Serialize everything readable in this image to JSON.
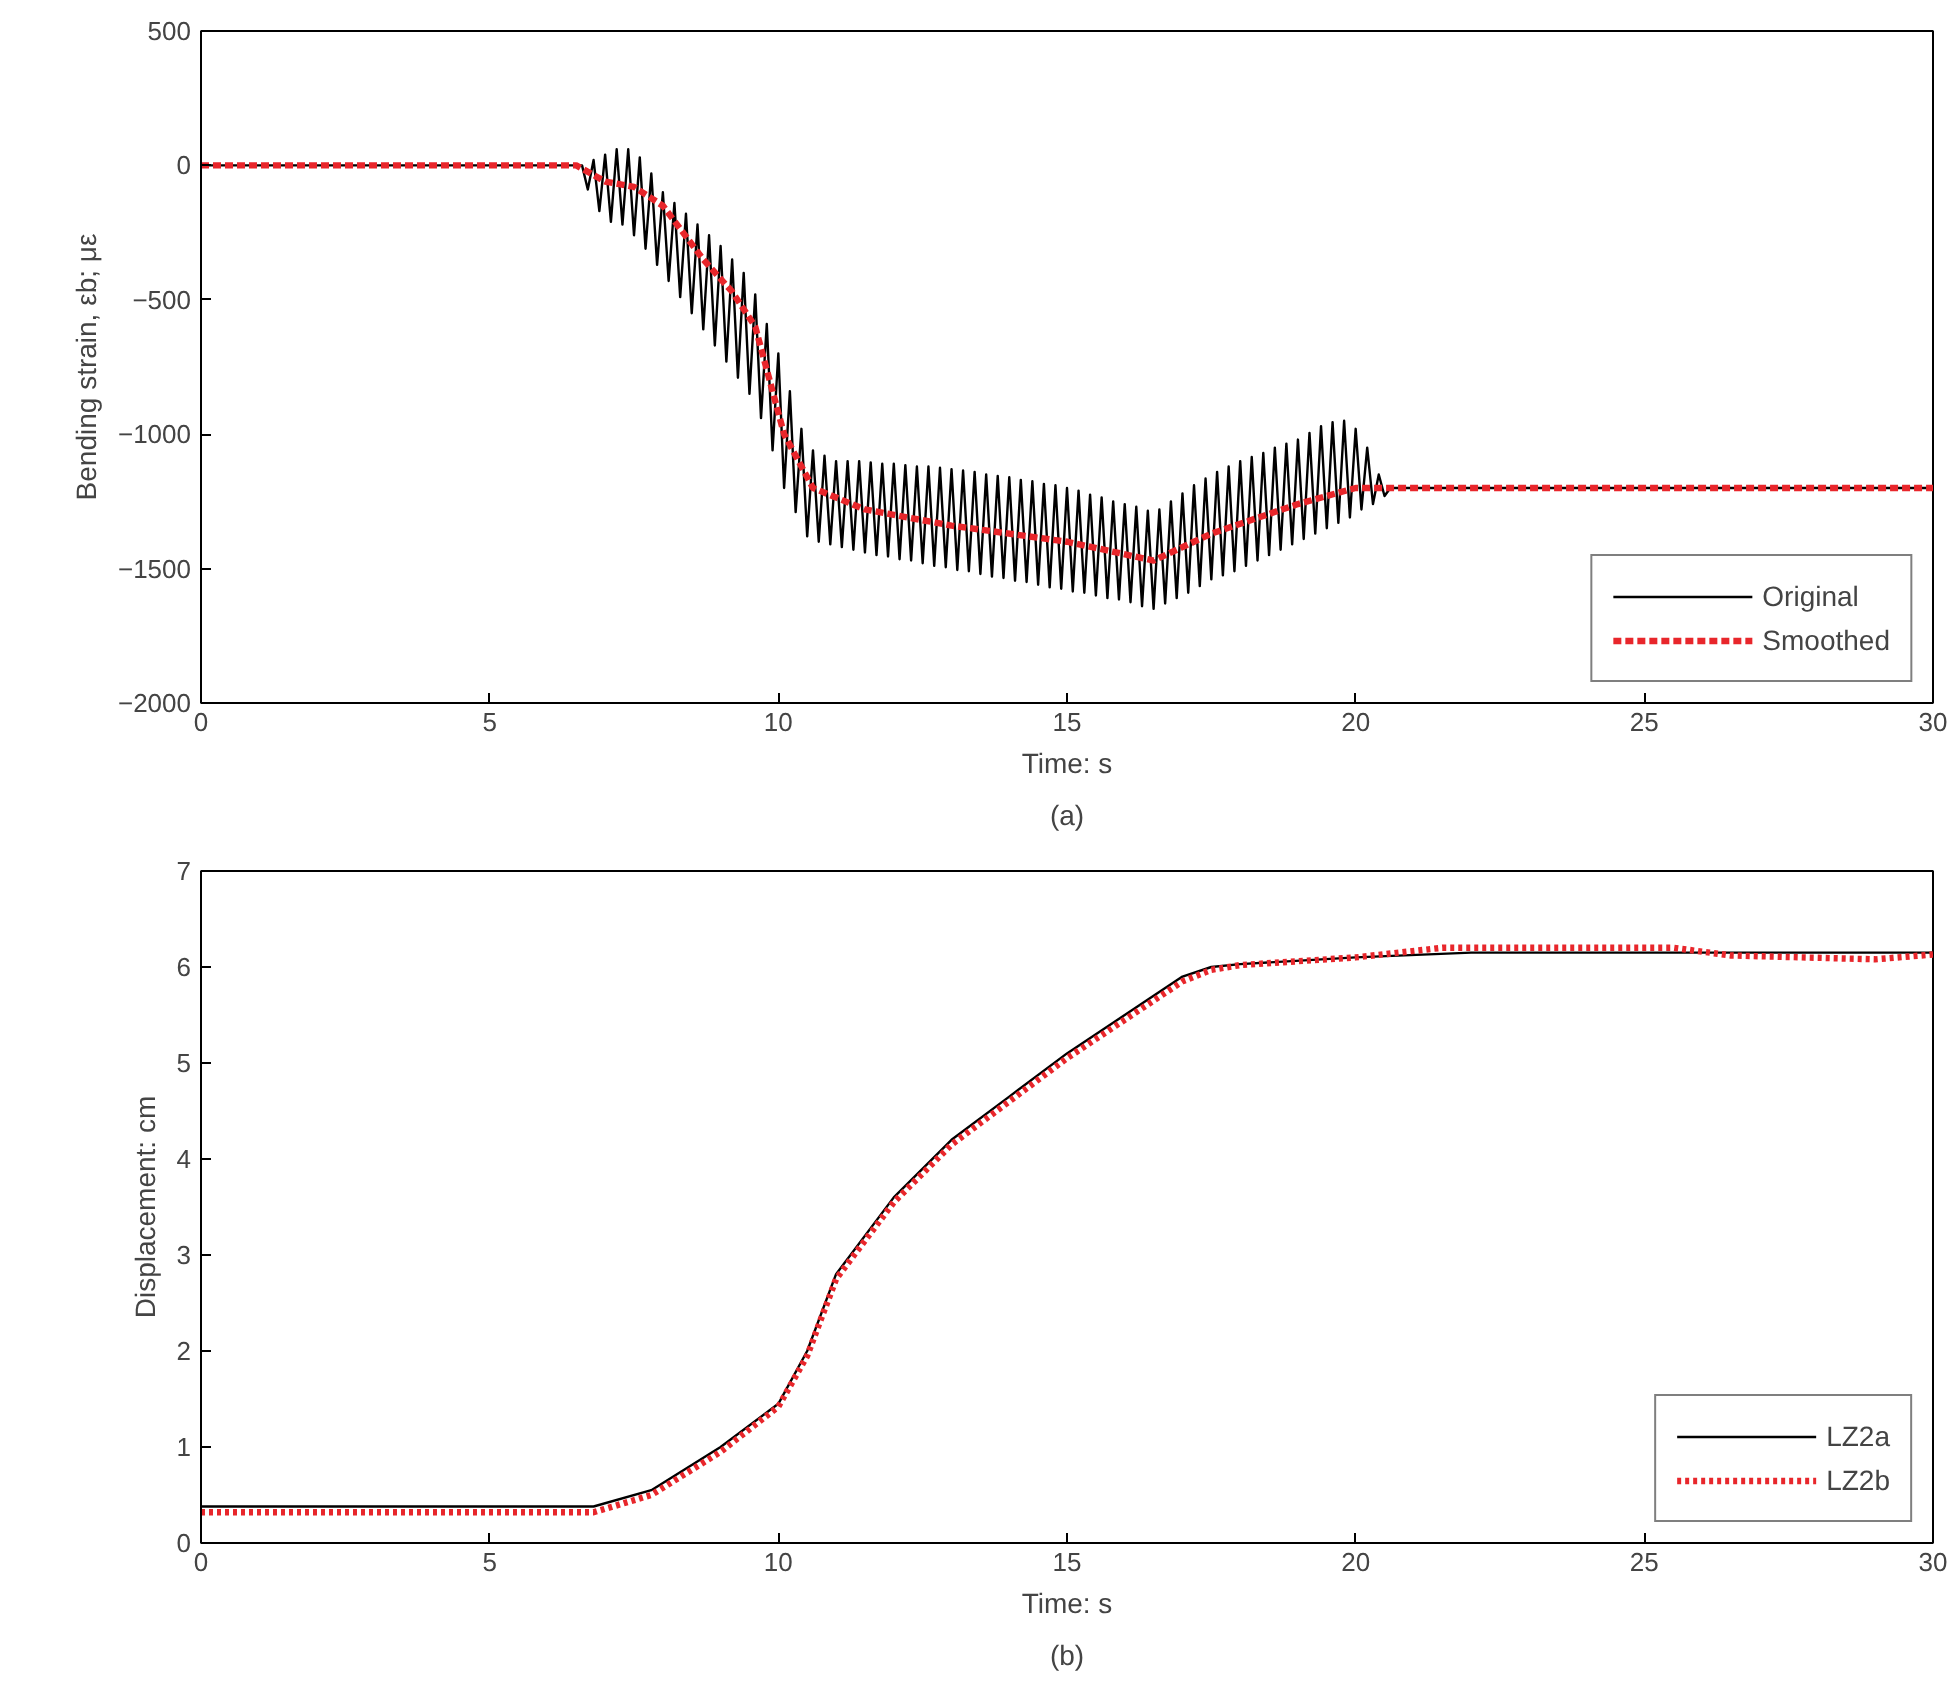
{
  "chart_data": [
    {
      "type": "line",
      "xlabel": "Time: s",
      "ylabel": "Bending strain, εb; με",
      "annotations": [
        "(a)"
      ],
      "xlim": [
        0,
        30
      ],
      "xticks": [
        0,
        5,
        10,
        15,
        20,
        25,
        30
      ],
      "ylim": [
        -2000,
        500
      ],
      "yticks": [
        500,
        0,
        {
          "value": -500,
          "label": "−500"
        },
        {
          "value": -1000,
          "label": "−1000"
        },
        {
          "value": -1500,
          "label": "−1500"
        },
        {
          "value": -2000,
          "label": "−2000"
        }
      ],
      "grid": false,
      "legend": "bottom right",
      "series": [
        {
          "name": "Original",
          "color": "#000000",
          "line_style": "solid",
          "x": [
            0,
            6.5,
            6.6,
            6.7,
            6.8,
            6.9,
            7.0,
            7.1,
            7.2,
            7.3,
            7.4,
            7.5,
            7.6,
            7.7,
            7.8,
            7.9,
            8.0,
            8.1,
            8.2,
            8.3,
            8.4,
            8.5,
            8.6,
            8.7,
            8.8,
            8.9,
            9.0,
            9.1,
            9.2,
            9.3,
            9.4,
            9.5,
            9.6,
            9.7,
            9.8,
            9.9,
            10.0,
            10.1,
            10.2,
            10.3,
            10.4,
            10.5,
            10.6,
            10.7,
            10.8,
            10.9,
            11.0,
            11.1,
            11.2,
            11.3,
            11.4,
            11.5,
            11.6,
            11.7,
            11.8,
            11.9,
            12.0,
            12.1,
            12.2,
            12.3,
            12.4,
            12.5,
            12.6,
            12.7,
            12.8,
            12.9,
            13.0,
            13.1,
            13.2,
            13.3,
            13.4,
            13.5,
            13.6,
            13.7,
            13.8,
            13.9,
            14.0,
            14.1,
            14.2,
            14.3,
            14.4,
            14.5,
            14.6,
            14.7,
            14.8,
            14.9,
            15.0,
            15.1,
            15.2,
            15.3,
            15.4,
            15.5,
            15.6,
            15.7,
            15.8,
            15.9,
            16.0,
            16.1,
            16.2,
            16.3,
            16.4,
            16.5,
            16.6,
            16.7,
            16.8,
            16.9,
            17.0,
            17.1,
            17.2,
            17.3,
            17.4,
            17.5,
            17.6,
            17.7,
            17.8,
            17.9,
            18.0,
            18.1,
            18.2,
            18.3,
            18.4,
            18.5,
            18.6,
            18.7,
            18.8,
            18.9,
            19.0,
            19.1,
            19.2,
            19.3,
            19.4,
            19.5,
            19.6,
            19.7,
            19.8,
            19.9,
            20.0,
            20.1,
            20.2,
            20.3,
            20.4,
            20.5,
            20.6,
            30
          ],
          "values": [
            0,
            0,
            0,
            -90,
            20,
            -170,
            40,
            -210,
            60,
            -220,
            60,
            -260,
            30,
            -310,
            -30,
            -370,
            -100,
            -430,
            -140,
            -490,
            -180,
            -550,
            -220,
            -610,
            -260,
            -670,
            -300,
            -730,
            -350,
            -790,
            -400,
            -850,
            -480,
            -940,
            -590,
            -1060,
            -700,
            -1200,
            -840,
            -1290,
            -980,
            -1380,
            -1060,
            -1400,
            -1080,
            -1410,
            -1100,
            -1420,
            -1100,
            -1430,
            -1100,
            -1440,
            -1105,
            -1450,
            -1110,
            -1455,
            -1110,
            -1465,
            -1115,
            -1470,
            -1120,
            -1480,
            -1120,
            -1490,
            -1125,
            -1495,
            -1130,
            -1505,
            -1135,
            -1510,
            -1140,
            -1520,
            -1150,
            -1530,
            -1155,
            -1535,
            -1160,
            -1545,
            -1170,
            -1550,
            -1175,
            -1560,
            -1185,
            -1570,
            -1190,
            -1575,
            -1200,
            -1585,
            -1210,
            -1590,
            -1225,
            -1600,
            -1235,
            -1610,
            -1250,
            -1615,
            -1260,
            -1625,
            -1270,
            -1640,
            -1285,
            -1650,
            -1280,
            -1630,
            -1250,
            -1610,
            -1220,
            -1590,
            -1190,
            -1565,
            -1165,
            -1540,
            -1140,
            -1525,
            -1120,
            -1510,
            -1100,
            -1490,
            -1085,
            -1470,
            -1070,
            -1450,
            -1050,
            -1430,
            -1035,
            -1410,
            -1020,
            -1390,
            -995,
            -1370,
            -970,
            -1350,
            -955,
            -1330,
            -950,
            -1310,
            -980,
            -1280,
            -1050,
            -1260,
            -1150,
            -1230,
            -1200,
            -1200
          ]
        },
        {
          "name": "Smoothed",
          "color": "#e8262b",
          "line_style": "dashed",
          "x": [
            0,
            6.5,
            7,
            7.5,
            8,
            8.7,
            9.2,
            9.6,
            10.1,
            10.6,
            11.5,
            13,
            15,
            16.5,
            17.5,
            19,
            20,
            20.6,
            30
          ],
          "values": [
            0,
            0,
            -60,
            -80,
            -150,
            -350,
            -470,
            -600,
            -1000,
            -1200,
            -1280,
            -1340,
            -1400,
            -1470,
            -1370,
            -1260,
            -1200,
            -1200,
            -1200
          ]
        }
      ]
    },
    {
      "type": "line",
      "xlabel": "Time: s",
      "ylabel": "Displacement: cm",
      "annotations": [
        "(b)"
      ],
      "xlim": [
        0,
        30
      ],
      "xticks": [
        0,
        5,
        10,
        15,
        20,
        25,
        30
      ],
      "ylim": [
        0,
        7
      ],
      "yticks": [
        0,
        1,
        2,
        3,
        4,
        5,
        6,
        7
      ],
      "grid": false,
      "legend": "bottom right",
      "series": [
        {
          "name": "LZ2a",
          "color": "#000000",
          "line_style": "solid",
          "x": [
            0,
            6.8,
            7.8,
            9,
            10,
            10.5,
            11,
            12,
            13,
            14,
            15,
            16,
            17,
            17.5,
            18,
            20,
            22,
            26,
            30
          ],
          "values": [
            0.38,
            0.38,
            0.55,
            1.0,
            1.45,
            2.0,
            2.8,
            3.6,
            4.2,
            4.65,
            5.1,
            5.5,
            5.9,
            6.0,
            6.03,
            6.1,
            6.15,
            6.15,
            6.15
          ]
        },
        {
          "name": "LZ2b",
          "color": "#e8262b",
          "line_style": "dotted",
          "x": [
            0,
            6.8,
            7.8,
            9,
            10,
            10.5,
            11,
            12,
            13,
            14,
            15,
            16,
            17,
            17.5,
            18,
            20,
            21.5,
            25.5,
            26.5,
            29,
            30
          ],
          "values": [
            0.32,
            0.32,
            0.5,
            0.95,
            1.42,
            1.95,
            2.75,
            3.55,
            4.15,
            4.6,
            5.05,
            5.45,
            5.85,
            5.97,
            6.02,
            6.1,
            6.2,
            6.2,
            6.12,
            6.08,
            6.13
          ]
        }
      ]
    }
  ]
}
